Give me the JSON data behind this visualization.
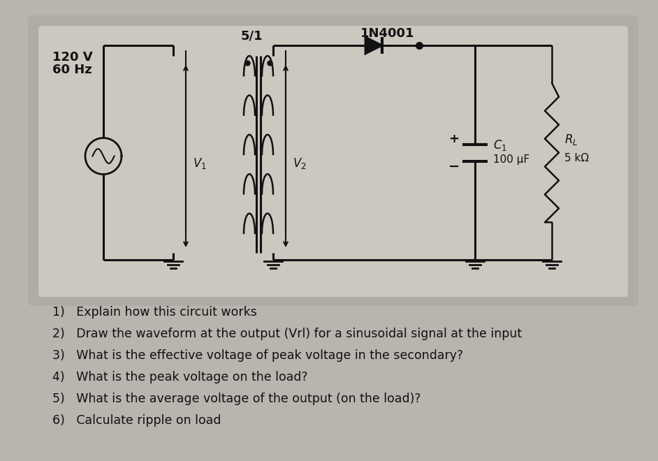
{
  "outer_bg": "#b8b4ae",
  "circuit_bg": "#c8c4bc",
  "white_area_bg": "#f0efee",
  "line_color": "#111111",
  "text_color": "#111111",
  "transformer_ratio": "5/1",
  "diode_label": "1N4001",
  "v1_label": "V₁",
  "v2_label": "V₂",
  "cap_label": "C₁",
  "cap_value": "100 μF",
  "res_label": "Rₗ",
  "res_value": "5 kΩ",
  "source_label_1": "120 V",
  "source_label_2": "60 Hz",
  "questions": [
    "1)   Explain how this circuit works",
    "2)   Draw the waveform at the output (Vrl) for a sinusoidal signal at the input",
    "3)   What is the effective voltage of peak voltage in the secondary?",
    "4)   What is the peak voltage on the load?",
    "5)   What is the average voltage of the output (on the load)?",
    "6)   Calculate ripple on load"
  ]
}
